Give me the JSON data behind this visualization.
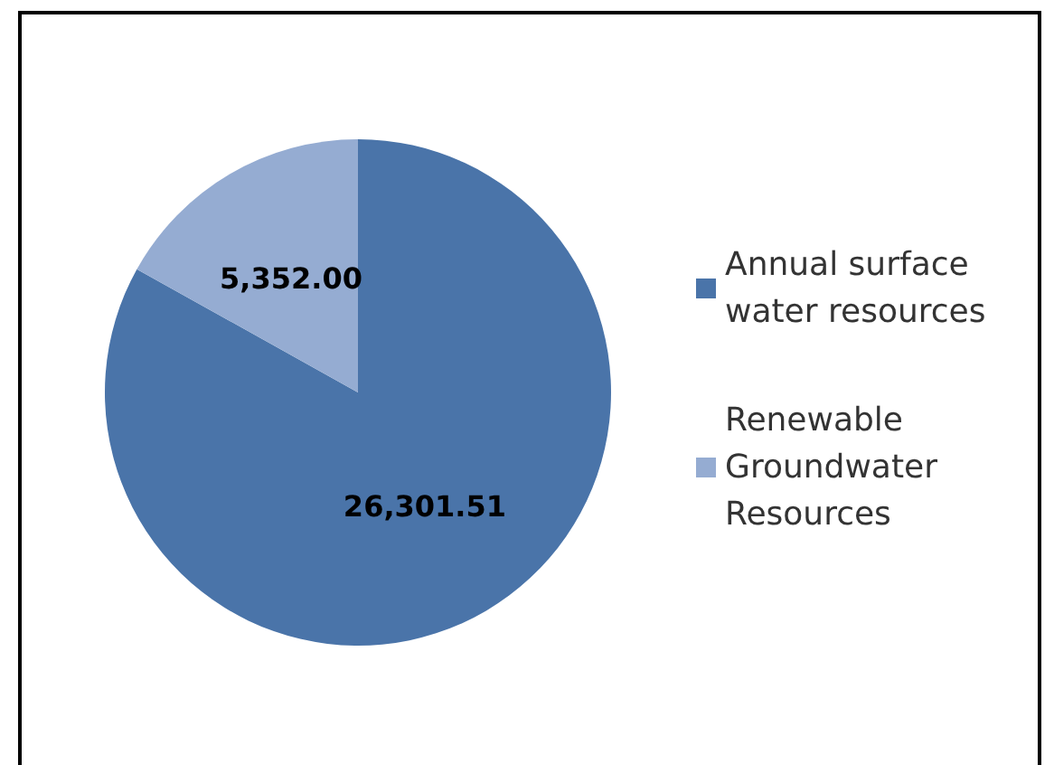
{
  "chart_data": {
    "type": "pie",
    "categories": [
      "Annual surface water resources",
      "Renewable Groundwater Resources"
    ],
    "values": [
      26301.51,
      5352.0
    ],
    "value_labels": [
      "26,301.51",
      "5,352.00"
    ],
    "colors": [
      "#4a74a9",
      "#95acd2"
    ],
    "legend": "right"
  }
}
